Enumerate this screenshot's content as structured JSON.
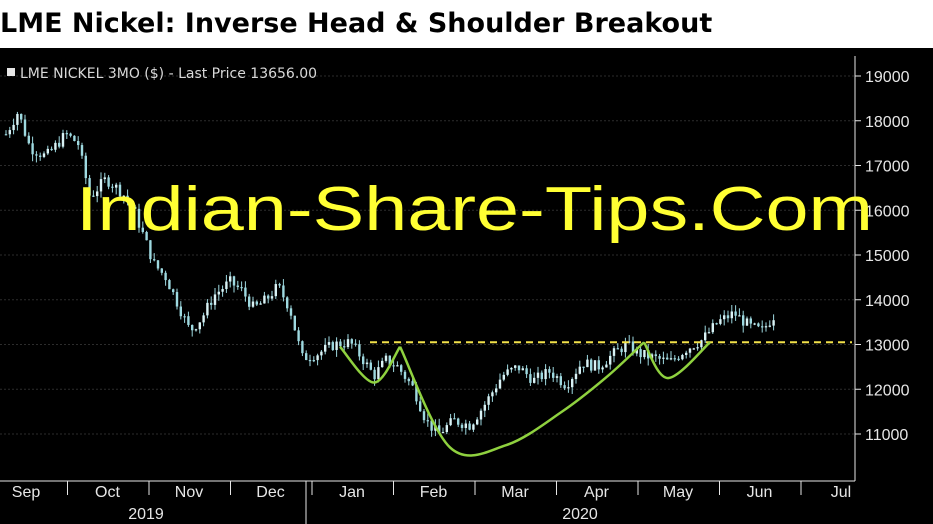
{
  "title": "LME Nickel: Inverse Head & Shoulder Breakout",
  "watermark": "Indian-Share-Tips.Com",
  "colors": {
    "background": "#000000",
    "candle": "#9ed9e0",
    "neckline": "#f2e14a",
    "pattern": "#8fd13f",
    "watermark": "#ffff33",
    "text": "#e6e6e6"
  },
  "chart_data": {
    "type": "candlestick",
    "series_label": "LME NICKEL 3MO ($) - Last Price 13656.00",
    "ylim": [
      10300,
      19300
    ],
    "yticks": [
      11000,
      12000,
      13000,
      14000,
      15000,
      16000,
      17000,
      18000,
      19000
    ],
    "month_labels": [
      "Sep",
      "Oct",
      "Nov",
      "Dec",
      "Jan",
      "Feb",
      "Mar",
      "Apr",
      "May",
      "Jun",
      "Jul"
    ],
    "year_labels": [
      "2019",
      "2020"
    ],
    "neckline": 13050,
    "price_path": [
      {
        "t": 0.0,
        "p": 17700
      },
      {
        "t": 0.3,
        "p": 18200
      },
      {
        "t": 0.6,
        "p": 17400
      },
      {
        "t": 1.0,
        "p": 17200
      },
      {
        "t": 1.5,
        "p": 17700
      },
      {
        "t": 1.8,
        "p": 17500
      },
      {
        "t": 2.1,
        "p": 16300
      },
      {
        "t": 2.5,
        "p": 16700
      },
      {
        "t": 2.9,
        "p": 16400
      },
      {
        "t": 3.2,
        "p": 16000
      },
      {
        "t": 3.7,
        "p": 14800
      },
      {
        "t": 4.0,
        "p": 14500
      },
      {
        "t": 4.3,
        "p": 13900
      },
      {
        "t": 4.6,
        "p": 13300
      },
      {
        "t": 4.9,
        "p": 13600
      },
      {
        "t": 5.2,
        "p": 14100
      },
      {
        "t": 5.6,
        "p": 14400
      },
      {
        "t": 5.9,
        "p": 14200
      },
      {
        "t": 6.2,
        "p": 13800
      },
      {
        "t": 6.5,
        "p": 14000
      },
      {
        "t": 6.8,
        "p": 14300
      },
      {
        "t": 7.1,
        "p": 13800
      },
      {
        "t": 7.4,
        "p": 12700
      },
      {
        "t": 7.8,
        "p": 12800
      },
      {
        "t": 8.2,
        "p": 13000
      },
      {
        "t": 8.6,
        "p": 13050
      },
      {
        "t": 8.9,
        "p": 12700
      },
      {
        "t": 9.2,
        "p": 12300
      },
      {
        "t": 9.5,
        "p": 12650
      },
      {
        "t": 9.8,
        "p": 12500
      },
      {
        "t": 10.2,
        "p": 12000
      },
      {
        "t": 10.5,
        "p": 11300
      },
      {
        "t": 10.8,
        "p": 11000
      },
      {
        "t": 11.2,
        "p": 11300
      },
      {
        "t": 11.6,
        "p": 11200
      },
      {
        "t": 12.0,
        "p": 11700
      },
      {
        "t": 12.4,
        "p": 12300
      },
      {
        "t": 12.8,
        "p": 12500
      },
      {
        "t": 13.2,
        "p": 12200
      },
      {
        "t": 13.6,
        "p": 12400
      },
      {
        "t": 14.0,
        "p": 12100
      },
      {
        "t": 14.4,
        "p": 12600
      },
      {
        "t": 14.8,
        "p": 12500
      },
      {
        "t": 15.2,
        "p": 12800
      },
      {
        "t": 15.5,
        "p": 13000
      },
      {
        "t": 15.8,
        "p": 12800
      },
      {
        "t": 16.2,
        "p": 12700
      },
      {
        "t": 16.6,
        "p": 12600
      },
      {
        "t": 17.0,
        "p": 12900
      },
      {
        "t": 17.4,
        "p": 13100
      },
      {
        "t": 17.8,
        "p": 13500
      },
      {
        "t": 18.2,
        "p": 13700
      },
      {
        "t": 18.6,
        "p": 13400
      },
      {
        "t": 18.9,
        "p": 13300
      },
      {
        "t": 19.2,
        "p": 13650
      }
    ],
    "pattern_points": [
      {
        "t": 8.35,
        "p": 12950
      },
      {
        "t": 9.2,
        "p": 12150
      },
      {
        "t": 9.85,
        "p": 12950
      },
      {
        "t": 11.1,
        "p": 10700
      },
      {
        "t": 12.5,
        "p": 10750
      },
      {
        "t": 13.9,
        "p": 11500
      },
      {
        "t": 15.05,
        "p": 12300
      },
      {
        "t": 15.95,
        "p": 13050
      },
      {
        "t": 16.55,
        "p": 12250
      },
      {
        "t": 17.6,
        "p": 13050
      }
    ]
  }
}
